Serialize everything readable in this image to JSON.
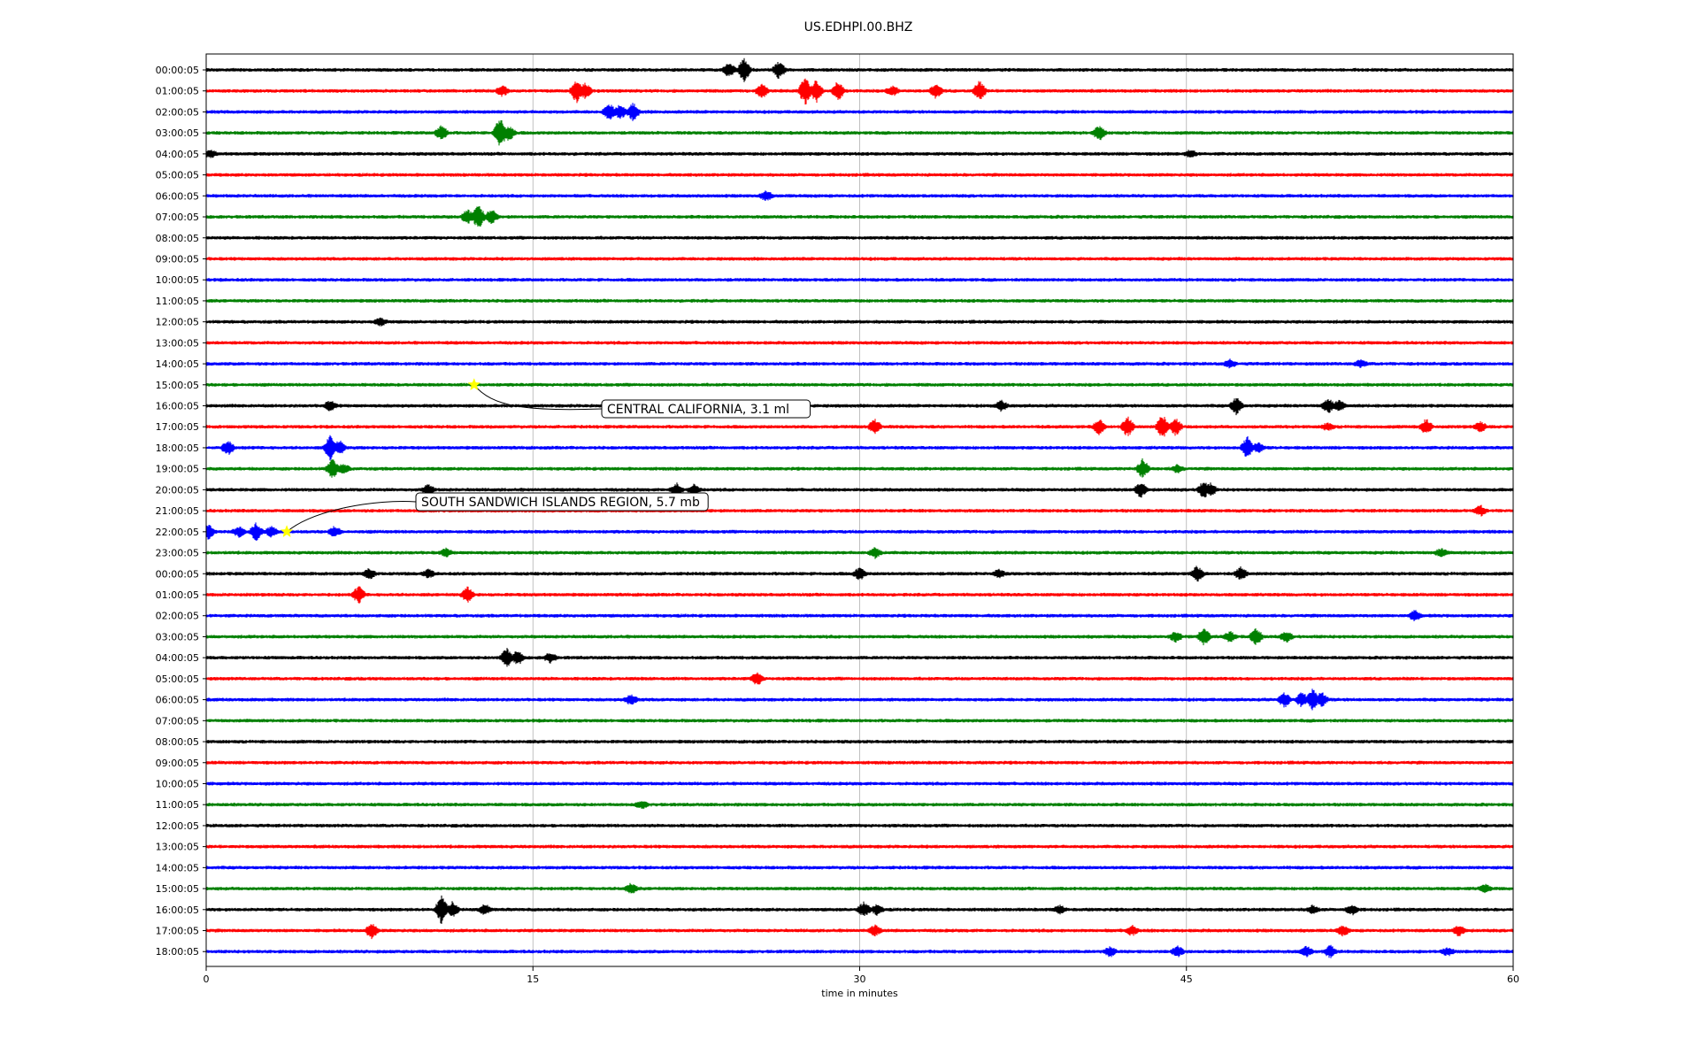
{
  "chart_data": {
    "type": "line",
    "title": "US.EDHPI.00.BHZ",
    "xlabel": "time in minutes",
    "ylabel": "",
    "xlim": [
      0,
      60
    ],
    "x_ticks": [
      0,
      15,
      30,
      45,
      60
    ],
    "x_tick_labels": [
      "0",
      "15",
      "30",
      "45",
      "60"
    ],
    "grid": "vertical lines at x ticks",
    "trace_color_cycle": [
      "#000000",
      "#ff0000",
      "#0000ff",
      "#008000"
    ],
    "rows": [
      "00:00:05",
      "01:00:05",
      "02:00:05",
      "03:00:05",
      "04:00:05",
      "05:00:05",
      "06:00:05",
      "07:00:05",
      "08:00:05",
      "09:00:05",
      "10:00:05",
      "11:00:05",
      "12:00:05",
      "13:00:05",
      "14:00:05",
      "15:00:05",
      "16:00:05",
      "17:00:05",
      "18:00:05",
      "19:00:05",
      "20:00:05",
      "21:00:05",
      "22:00:05",
      "23:00:05",
      "00:00:05",
      "01:00:05",
      "02:00:05",
      "03:00:05",
      "04:00:05",
      "05:00:05",
      "06:00:05",
      "07:00:05",
      "08:00:05",
      "09:00:05",
      "10:00:05",
      "11:00:05",
      "12:00:05",
      "13:00:05",
      "14:00:05",
      "15:00:05",
      "16:00:05",
      "17:00:05",
      "18:00:05"
    ],
    "events": [
      {
        "row": 0,
        "bursts": [
          [
            24.0,
            3.0
          ],
          [
            24.7,
            5.0
          ],
          [
            26.3,
            3.5
          ]
        ]
      },
      {
        "row": 1,
        "bursts": [
          [
            13.6,
            2.0
          ],
          [
            17.0,
            5.0
          ],
          [
            17.4,
            3.0
          ],
          [
            25.5,
            3.0
          ],
          [
            27.5,
            6.0
          ],
          [
            28.0,
            5.0
          ],
          [
            29.0,
            4.0
          ],
          [
            31.5,
            2.0
          ],
          [
            33.5,
            3.0
          ],
          [
            35.5,
            4.0
          ]
        ]
      },
      {
        "row": 2,
        "bursts": [
          [
            18.5,
            3.5
          ],
          [
            19.0,
            3.0
          ],
          [
            19.6,
            3.5
          ]
        ]
      },
      {
        "row": 3,
        "bursts": [
          [
            10.8,
            3.0
          ],
          [
            13.5,
            7.0
          ],
          [
            13.9,
            3.0
          ],
          [
            41.0,
            3.0
          ]
        ]
      },
      {
        "row": 4,
        "bursts": [
          [
            0.2,
            1.5
          ],
          [
            45.2,
            1.5
          ]
        ]
      },
      {
        "row": 6,
        "bursts": [
          [
            25.7,
            2.0
          ]
        ]
      },
      {
        "row": 7,
        "bursts": [
          [
            12.0,
            3.0
          ],
          [
            12.5,
            5.0
          ],
          [
            13.1,
            3.0
          ]
        ]
      },
      {
        "row": 12,
        "bursts": [
          [
            8.0,
            1.5
          ]
        ]
      },
      {
        "row": 14,
        "bursts": [
          [
            47.0,
            1.5
          ],
          [
            53.0,
            1.5
          ]
        ]
      },
      {
        "row": 16,
        "bursts": [
          [
            5.7,
            2.0
          ],
          [
            36.5,
            2.0
          ],
          [
            47.3,
            3.5
          ],
          [
            51.5,
            3.0
          ],
          [
            52.0,
            2.0
          ]
        ]
      },
      {
        "row": 17,
        "bursts": [
          [
            30.7,
            3.0
          ],
          [
            41.0,
            3.0
          ],
          [
            42.3,
            4.0
          ],
          [
            43.9,
            5.0
          ],
          [
            44.5,
            3.5
          ],
          [
            51.5,
            1.5
          ],
          [
            56.0,
            3.0
          ],
          [
            58.5,
            2.0
          ]
        ]
      },
      {
        "row": 18,
        "bursts": [
          [
            1.0,
            3.0
          ],
          [
            5.7,
            5.0
          ],
          [
            6.1,
            3.0
          ],
          [
            47.8,
            4.5
          ],
          [
            48.3,
            2.0
          ]
        ]
      },
      {
        "row": 19,
        "bursts": [
          [
            5.8,
            4.0
          ],
          [
            6.3,
            2.0
          ],
          [
            43.0,
            4.0
          ],
          [
            44.6,
            1.5
          ]
        ]
      },
      {
        "row": 20,
        "bursts": [
          [
            10.2,
            2.0
          ],
          [
            21.6,
            2.5
          ],
          [
            22.4,
            2.0
          ],
          [
            42.9,
            3.0
          ],
          [
            45.8,
            3.5
          ],
          [
            46.1,
            2.5
          ]
        ]
      },
      {
        "row": 21,
        "bursts": [
          [
            58.5,
            2.0
          ]
        ]
      },
      {
        "row": 22,
        "bursts": [
          [
            0.1,
            3.0
          ],
          [
            1.5,
            2.0
          ],
          [
            2.3,
            3.5
          ],
          [
            3.0,
            2.0
          ],
          [
            5.9,
            2.0
          ]
        ]
      },
      {
        "row": 23,
        "bursts": [
          [
            11.0,
            1.5
          ],
          [
            30.7,
            2.0
          ],
          [
            56.7,
            1.5
          ]
        ]
      },
      {
        "row": 24,
        "bursts": [
          [
            7.5,
            2.0
          ],
          [
            10.2,
            1.5
          ],
          [
            30.0,
            2.5
          ],
          [
            36.4,
            1.5
          ],
          [
            45.5,
            3.0
          ],
          [
            47.5,
            2.5
          ]
        ]
      },
      {
        "row": 25,
        "bursts": [
          [
            7.0,
            3.5
          ],
          [
            12.0,
            3.0
          ]
        ]
      },
      {
        "row": 26,
        "bursts": [
          [
            55.5,
            2.0
          ]
        ]
      },
      {
        "row": 27,
        "bursts": [
          [
            44.5,
            2.0
          ],
          [
            45.8,
            3.5
          ],
          [
            47.0,
            2.0
          ],
          [
            48.2,
            3.5
          ],
          [
            49.6,
            2.0
          ]
        ]
      },
      {
        "row": 28,
        "bursts": [
          [
            13.8,
            4.0
          ],
          [
            14.3,
            3.0
          ],
          [
            15.8,
            2.0
          ]
        ]
      },
      {
        "row": 29,
        "bursts": [
          [
            25.3,
            2.5
          ]
        ]
      },
      {
        "row": 30,
        "bursts": [
          [
            19.5,
            2.0
          ],
          [
            49.5,
            3.0
          ],
          [
            50.3,
            3.0
          ],
          [
            50.8,
            5.0
          ],
          [
            51.2,
            3.0
          ]
        ]
      },
      {
        "row": 35,
        "bursts": [
          [
            20.0,
            1.5
          ]
        ]
      },
      {
        "row": 39,
        "bursts": [
          [
            19.5,
            2.0
          ],
          [
            58.7,
            1.5
          ]
        ]
      },
      {
        "row": 40,
        "bursts": [
          [
            10.8,
            6.0
          ],
          [
            11.3,
            3.0
          ],
          [
            12.8,
            2.0
          ],
          [
            30.2,
            3.0
          ],
          [
            30.8,
            2.0
          ],
          [
            39.2,
            1.5
          ],
          [
            50.8,
            1.5
          ],
          [
            52.6,
            2.0
          ]
        ]
      },
      {
        "row": 41,
        "bursts": [
          [
            7.6,
            3.0
          ],
          [
            30.7,
            2.0
          ],
          [
            42.5,
            2.0
          ],
          [
            52.2,
            2.0
          ],
          [
            57.5,
            2.0
          ]
        ]
      },
      {
        "row": 42,
        "bursts": [
          [
            41.5,
            2.0
          ],
          [
            44.6,
            2.0
          ],
          [
            50.5,
            2.0
          ],
          [
            51.6,
            2.5
          ],
          [
            57.0,
            1.5
          ]
        ]
      }
    ],
    "annotations": [
      {
        "label": "CENTRAL CALIFORNIA, 3.1 ml",
        "marker_row": 15,
        "marker_x": 12.3,
        "marker_color": "#ffff00"
      },
      {
        "label": "SOUTH SANDWICH ISLANDS REGION, 5.7 mb",
        "marker_row": 22,
        "marker_x": 3.7,
        "marker_color": "#ffff00"
      }
    ]
  }
}
